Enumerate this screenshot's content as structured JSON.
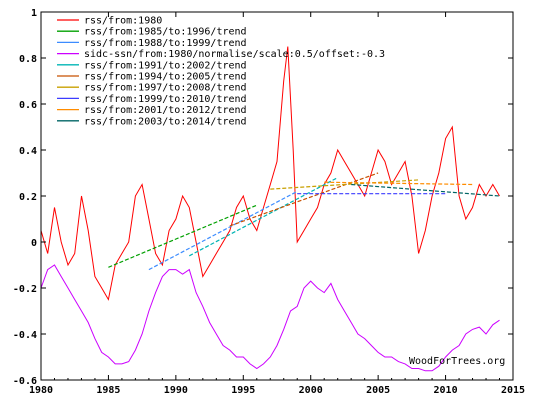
{
  "chart_data": {
    "type": "line",
    "title": "",
    "xlabel": "",
    "ylabel": "",
    "xlim": [
      1980,
      2015
    ],
    "ylim": [
      -0.6,
      1
    ],
    "x_ticks": [
      "1980",
      "1985",
      "1990",
      "1995",
      "2000",
      "2005",
      "2010",
      "2015"
    ],
    "y_ticks": [
      "1",
      "0.8",
      "0.6",
      "0.4",
      "0.2",
      "0",
      "-0.2",
      "-0.4",
      "-0.6"
    ],
    "grid": false,
    "legend_position": "top-left",
    "watermark": "WoodForTrees.org",
    "series": [
      {
        "name": "rss/from:1980",
        "color": "#ff0000",
        "kind": "data",
        "x": [
          1980.0,
          1980.5,
          1981.0,
          1981.5,
          1982.0,
          1982.5,
          1983.0,
          1983.5,
          1984.0,
          1984.5,
          1985.0,
          1985.5,
          1986.0,
          1986.5,
          1987.0,
          1987.5,
          1988.0,
          1988.5,
          1989.0,
          1989.5,
          1990.0,
          1990.5,
          1991.0,
          1991.5,
          1992.0,
          1992.5,
          1993.0,
          1993.5,
          1994.0,
          1994.5,
          1995.0,
          1995.5,
          1996.0,
          1996.5,
          1997.0,
          1997.5,
          1998.0,
          1998.3,
          1998.7,
          1999.0,
          1999.5,
          2000.0,
          2000.5,
          2001.0,
          2001.5,
          2002.0,
          2002.5,
          2003.0,
          2003.5,
          2004.0,
          2004.5,
          2005.0,
          2005.5,
          2006.0,
          2006.5,
          2007.0,
          2007.5,
          2008.0,
          2008.5,
          2009.0,
          2009.5,
          2010.0,
          2010.5,
          2011.0,
          2011.5,
          2012.0,
          2012.5,
          2013.0,
          2013.5,
          2014.0
        ],
        "y": [
          0.05,
          -0.05,
          0.15,
          0.0,
          -0.1,
          -0.05,
          0.2,
          0.05,
          -0.15,
          -0.2,
          -0.25,
          -0.1,
          -0.05,
          0.0,
          0.2,
          0.25,
          0.1,
          -0.05,
          -0.1,
          0.05,
          0.1,
          0.2,
          0.15,
          0.0,
          -0.15,
          -0.1,
          -0.05,
          0.0,
          0.05,
          0.15,
          0.2,
          0.1,
          0.05,
          0.15,
          0.25,
          0.35,
          0.7,
          0.85,
          0.4,
          0.0,
          0.05,
          0.1,
          0.15,
          0.25,
          0.3,
          0.4,
          0.35,
          0.3,
          0.25,
          0.2,
          0.3,
          0.4,
          0.35,
          0.25,
          0.3,
          0.35,
          0.2,
          -0.05,
          0.05,
          0.2,
          0.3,
          0.45,
          0.5,
          0.2,
          0.1,
          0.15,
          0.25,
          0.2,
          0.25,
          0.2
        ]
      },
      {
        "name": "rss/from:1985/to:1996/trend",
        "color": "#00a000",
        "kind": "trend",
        "x": [
          1985,
          1996
        ],
        "y": [
          -0.11,
          0.16
        ]
      },
      {
        "name": "rss/from:1988/to:1999/trend",
        "color": "#3c8cff",
        "kind": "trend",
        "x": [
          1988,
          1999
        ],
        "y": [
          -0.12,
          0.22
        ]
      },
      {
        "name": "sidc-ssn/from:1980/normalise/scale:0.5/offset:-0.3",
        "color": "#cc00ff",
        "kind": "data",
        "x": [
          1980.0,
          1980.5,
          1981.0,
          1981.5,
          1982.0,
          1982.5,
          1983.0,
          1983.5,
          1984.0,
          1984.5,
          1985.0,
          1985.5,
          1986.0,
          1986.5,
          1987.0,
          1987.5,
          1988.0,
          1988.5,
          1989.0,
          1989.5,
          1990.0,
          1990.5,
          1991.0,
          1991.5,
          1992.0,
          1992.5,
          1993.0,
          1993.5,
          1994.0,
          1994.5,
          1995.0,
          1995.5,
          1996.0,
          1996.5,
          1997.0,
          1997.5,
          1998.0,
          1998.5,
          1999.0,
          1999.5,
          2000.0,
          2000.5,
          2001.0,
          2001.5,
          2002.0,
          2002.5,
          2003.0,
          2003.5,
          2004.0,
          2004.5,
          2005.0,
          2005.5,
          2006.0,
          2006.5,
          2007.0,
          2007.5,
          2008.0,
          2008.5,
          2009.0,
          2009.5,
          2010.0,
          2010.5,
          2011.0,
          2011.5,
          2012.0,
          2012.5,
          2013.0,
          2013.5,
          2014.0
        ],
        "y": [
          -0.2,
          -0.12,
          -0.1,
          -0.15,
          -0.2,
          -0.25,
          -0.3,
          -0.35,
          -0.42,
          -0.48,
          -0.5,
          -0.53,
          -0.53,
          -0.52,
          -0.47,
          -0.4,
          -0.3,
          -0.22,
          -0.15,
          -0.12,
          -0.12,
          -0.14,
          -0.12,
          -0.22,
          -0.28,
          -0.35,
          -0.4,
          -0.45,
          -0.47,
          -0.5,
          -0.5,
          -0.53,
          -0.55,
          -0.53,
          -0.5,
          -0.45,
          -0.38,
          -0.3,
          -0.28,
          -0.2,
          -0.17,
          -0.2,
          -0.22,
          -0.18,
          -0.25,
          -0.3,
          -0.35,
          -0.4,
          -0.42,
          -0.45,
          -0.48,
          -0.5,
          -0.5,
          -0.52,
          -0.53,
          -0.55,
          -0.55,
          -0.56,
          -0.56,
          -0.54,
          -0.5,
          -0.47,
          -0.45,
          -0.4,
          -0.38,
          -0.37,
          -0.4,
          -0.36,
          -0.34
        ]
      },
      {
        "name": "rss/from:1991/to:2002/trend",
        "color": "#00b4b4",
        "kind": "trend",
        "x": [
          1991,
          2002
        ],
        "y": [
          -0.06,
          0.28
        ]
      },
      {
        "name": "rss/from:1994/to:2005/trend",
        "color": "#c85000",
        "kind": "trend",
        "x": [
          1994,
          2005
        ],
        "y": [
          0.07,
          0.3
        ]
      },
      {
        "name": "rss/from:1997/to:2008/trend",
        "color": "#c8a000",
        "kind": "trend",
        "x": [
          1997,
          2008
        ],
        "y": [
          0.23,
          0.27
        ]
      },
      {
        "name": "rss/from:1999/to:2010/trend",
        "color": "#3c3cff",
        "kind": "trend",
        "x": [
          1999,
          2010
        ],
        "y": [
          0.21,
          0.21
        ]
      },
      {
        "name": "rss/from:2001/to:2012/trend",
        "color": "#ff8c00",
        "kind": "trend",
        "x": [
          2001,
          2012
        ],
        "y": [
          0.26,
          0.25
        ]
      },
      {
        "name": "rss/from:2003/to:2014/trend",
        "color": "#006464",
        "kind": "trend",
        "x": [
          2003,
          2014
        ],
        "y": [
          0.25,
          0.2
        ]
      }
    ]
  }
}
